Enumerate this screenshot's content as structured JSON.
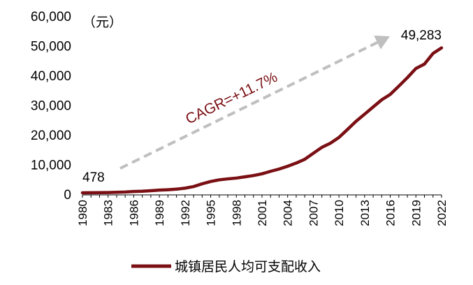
{
  "chart_data": {
    "type": "line",
    "unit_label": "（元）",
    "x": [
      1980,
      1981,
      1982,
      1983,
      1984,
      1985,
      1986,
      1987,
      1988,
      1989,
      1990,
      1991,
      1992,
      1993,
      1994,
      1995,
      1996,
      1997,
      1998,
      1999,
      2000,
      2001,
      2002,
      2003,
      2004,
      2005,
      2006,
      2007,
      2008,
      2009,
      2010,
      2011,
      2012,
      2013,
      2014,
      2015,
      2016,
      2017,
      2018,
      2019,
      2020,
      2021,
      2022
    ],
    "x_tick_labels": [
      "1980",
      "1983",
      "1986",
      "1989",
      "1992",
      "1995",
      "1998",
      "2001",
      "2004",
      "2007",
      "2010",
      "2013",
      "2016",
      "2019",
      "2022"
    ],
    "series": [
      {
        "name": "城镇居民人均可支配收入",
        "color": "#7a0f14",
        "values": [
          478,
          500,
          535,
          565,
          652,
          739,
          900,
          1002,
          1180,
          1374,
          1510,
          1701,
          2027,
          2577,
          3496,
          4283,
          4839,
          5160,
          5425,
          5854,
          6280,
          6860,
          7703,
          8472,
          9422,
          10493,
          11760,
          13786,
          15781,
          17175,
          19109,
          21810,
          24565,
          26955,
          29381,
          31790,
          33616,
          36396,
          39251,
          42359,
          43834,
          47412,
          49283
        ]
      }
    ],
    "y_tick_labels": [
      "0",
      "10,000",
      "20,000",
      "30,000",
      "40,000",
      "50,000",
      "60,000"
    ],
    "ylim": [
      0,
      60000
    ],
    "annotations": {
      "start_label": "478",
      "end_label": "49,283",
      "cagr_label": "CAGR=+11.7%"
    },
    "arrow_color": "#bfbfbf",
    "legend": {
      "placement": "bottom",
      "label": "城镇居民人均可支配收入"
    },
    "grid": false
  }
}
